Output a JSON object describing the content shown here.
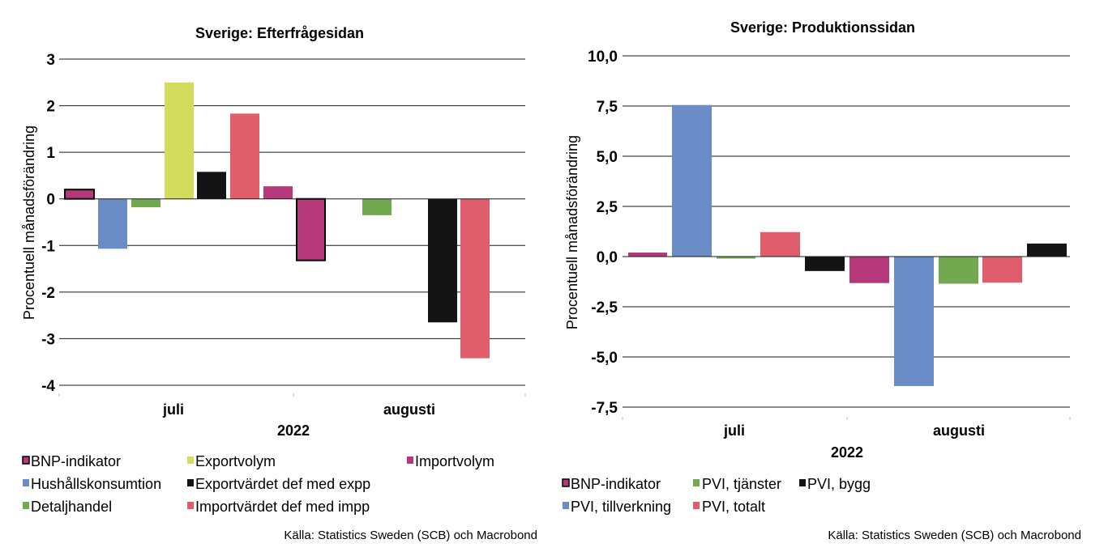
{
  "chart_data": [
    {
      "type": "bar",
      "title": "Sverige: Efterfrågesidan",
      "ylabel": "Procentuell månadsförändring",
      "xlabel": "2022",
      "categories": [
        "juli",
        "augusti"
      ],
      "ylim": [
        -4,
        3
      ],
      "yticks": [
        3,
        2,
        1,
        0,
        -1,
        -2,
        -3,
        -4
      ],
      "ytick_labels": [
        "3",
        "2",
        "1",
        "0",
        "-1",
        "-2",
        "-3",
        "-4"
      ],
      "grid": true,
      "legend_position": "bottom",
      "series": [
        {
          "name": "BNP-indikator",
          "color": "#b5397a",
          "outline": true,
          "values": [
            0.2,
            -1.32
          ]
        },
        {
          "name": "Hushållskonsumtion",
          "color": "#6a8cc7",
          "outline": false,
          "values": [
            -1.07,
            null
          ]
        },
        {
          "name": "Detaljhandel",
          "color": "#72a84f",
          "outline": false,
          "values": [
            -0.18,
            -0.35
          ]
        },
        {
          "name": "Exportvolym",
          "color": "#d4dc5e",
          "outline": false,
          "values": [
            2.5,
            null
          ]
        },
        {
          "name": "Exportvärdet def med expp",
          "color": "#141414",
          "outline": false,
          "values": [
            0.58,
            -2.65
          ]
        },
        {
          "name": "Importvärdet def med impp",
          "color": "#e05d6b",
          "outline": false,
          "values": [
            1.83,
            -3.42
          ]
        },
        {
          "name": "Importvolym",
          "color": "#b5397a",
          "outline": false,
          "values": [
            0.27,
            null
          ]
        }
      ],
      "source": "Källa: Statistics Sweden (SCB) och Macrobond"
    },
    {
      "type": "bar",
      "title": "Sverige: Produktionssidan",
      "ylabel": "Procentuell månadsförändring",
      "xlabel": "2022",
      "categories": [
        "juli",
        "augusti"
      ],
      "ylim": [
        -7.5,
        10
      ],
      "yticks": [
        10,
        7.5,
        5,
        2.5,
        0,
        -2.5,
        -5,
        -7.5
      ],
      "ytick_labels": [
        "10,0",
        "7,5",
        "5,0",
        "2,5",
        "0,0",
        "-2,5",
        "-5,0",
        "-7,5"
      ],
      "grid": true,
      "legend_position": "bottom",
      "series": [
        {
          "name": "BNP-indikator",
          "color": "#b5397a",
          "values": [
            0.2,
            -1.32
          ]
        },
        {
          "name": "PVI, tillverkning",
          "color": "#6a8cc7",
          "values": [
            7.55,
            -6.45
          ]
        },
        {
          "name": "PVI, tjänster",
          "color": "#72a84f",
          "values": [
            -0.1,
            -1.35
          ]
        },
        {
          "name": "PVI, totalt",
          "color": "#e05d6b",
          "values": [
            1.22,
            -1.3
          ]
        },
        {
          "name": "PVI, bygg",
          "color": "#141414",
          "values": [
            -0.72,
            0.65
          ]
        }
      ],
      "source": "Källa: Statistics Sweden (SCB) och Macrobond"
    }
  ]
}
